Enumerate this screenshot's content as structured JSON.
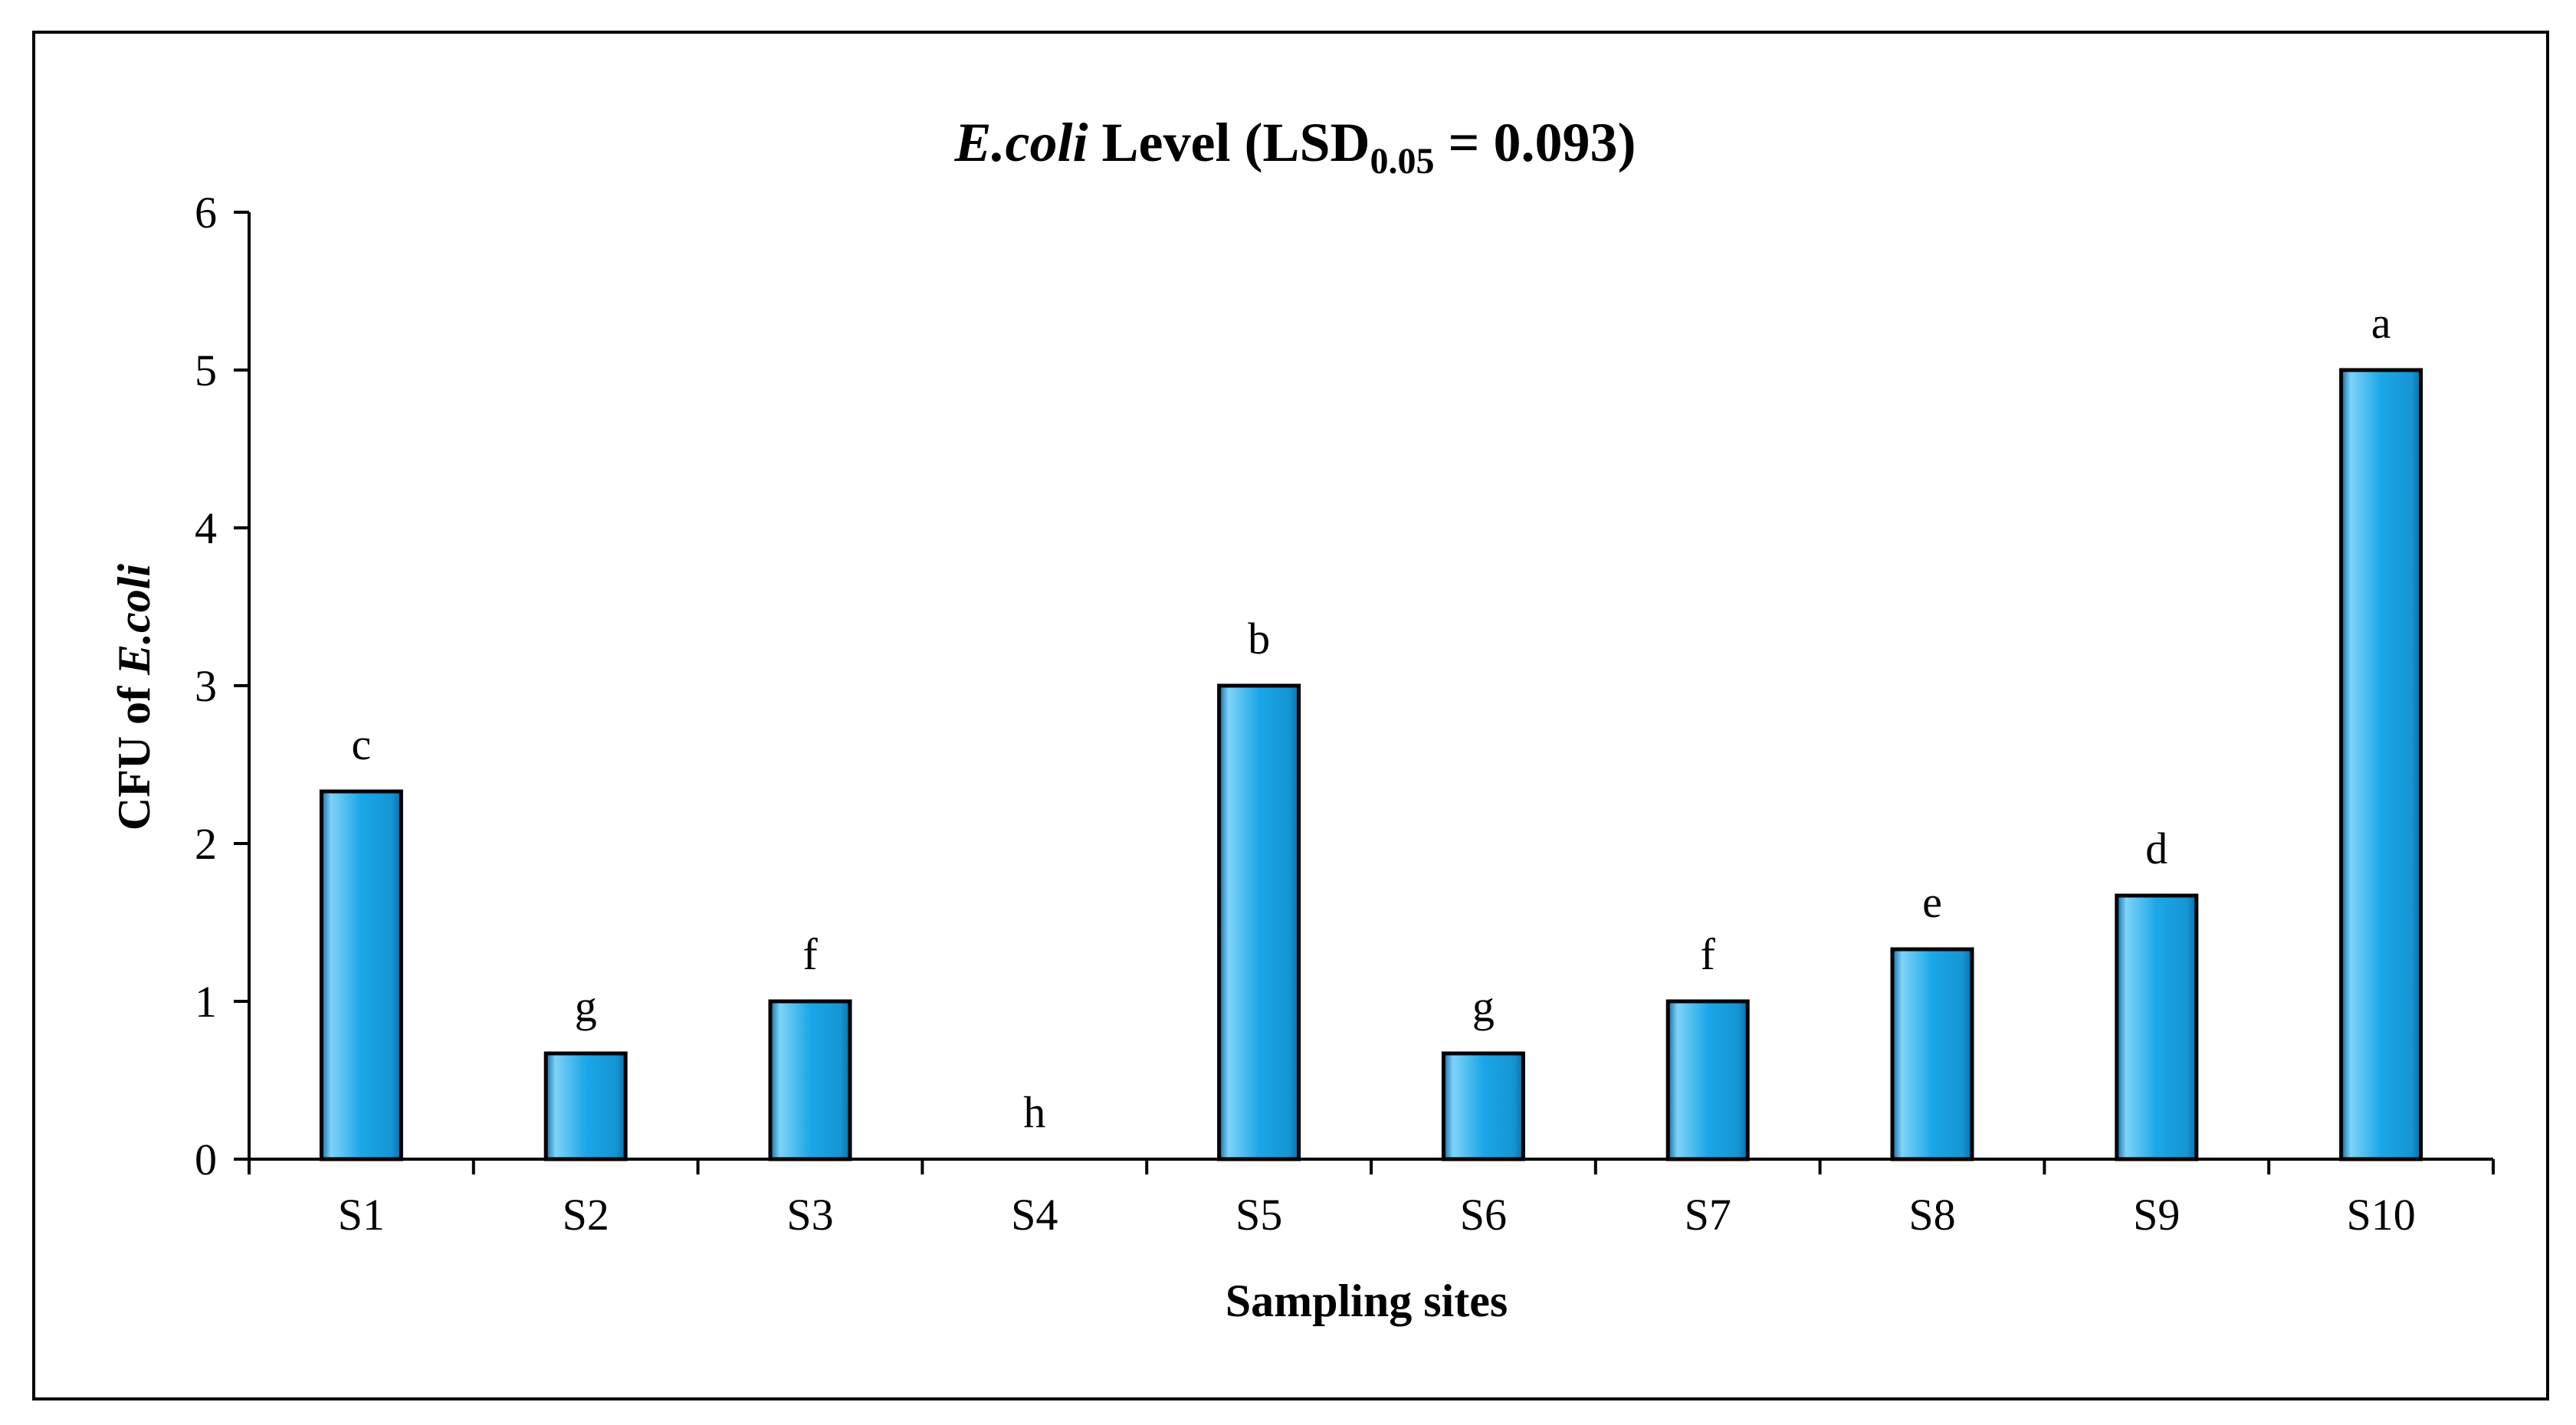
{
  "chart_data": {
    "type": "bar",
    "title": {
      "italic": "E.coli",
      "rest": " Level (LSD",
      "sub": "0.05",
      "end": " = 0.093)"
    },
    "xlabel": "Sampling sites",
    "ylabel": {
      "plain": "CFU of ",
      "italic": "E.coli"
    },
    "categories": [
      "S1",
      "S2",
      "S3",
      "S4",
      "S5",
      "S6",
      "S7",
      "S8",
      "S9",
      "S10"
    ],
    "values": [
      2.33,
      0.67,
      1.0,
      0.0,
      3.0,
      0.67,
      1.0,
      1.33,
      1.67,
      5.0
    ],
    "significance_letters": [
      "c",
      "g",
      "f",
      "h",
      "b",
      "g",
      "f",
      "e",
      "d",
      "a"
    ],
    "ylim": [
      0,
      6
    ],
    "yticks": [
      "0",
      "1",
      "2",
      "3",
      "4",
      "5",
      "6"
    ],
    "grid": false,
    "legend": "none",
    "colors": {
      "bar_fill": "#1aa7e8",
      "bar_highlight": "#7fd3f7",
      "bar_shadow": "#0b6fa8",
      "bar_edge": "#000000"
    }
  }
}
